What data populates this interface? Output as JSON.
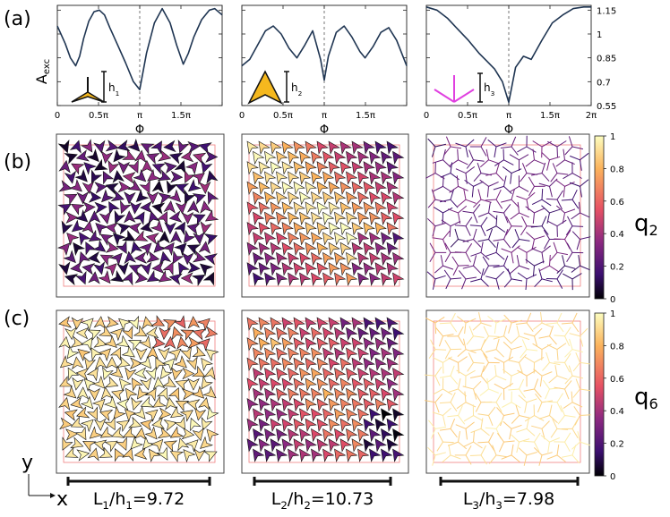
{
  "panel_labels": {
    "a": "(a)",
    "b": "(b)",
    "c": "(c)"
  },
  "order_params": {
    "b": "q2",
    "c": "q6"
  },
  "axes": {
    "y_label": "A",
    "y_label_sub": "exc",
    "x_label": "Φ",
    "y_ticks": [
      "1.15",
      "1",
      "0.85",
      "0.7",
      "0.55"
    ],
    "x_ticks": [
      "0",
      "0.5π",
      "π",
      "1.5π",
      "2π"
    ]
  },
  "colorbar": {
    "ticks": [
      "1",
      "0.8",
      "0.6",
      "0.4",
      "0.2",
      "0"
    ],
    "colors": [
      "#fcfdbf",
      "#fbb35c",
      "#e65164",
      "#8c2981",
      "#3b0f70",
      "#000004"
    ]
  },
  "shape_labels": [
    "h1",
    "h2",
    "h3"
  ],
  "ratios": [
    "L1/h1=9.72",
    "L2/h2=10.73",
    "L3/h3=7.98"
  ],
  "coord_axes": {
    "x": "x",
    "y": "y"
  },
  "chart_data": [
    {
      "type": "line",
      "xlabel": "Φ",
      "ylabel": "Aexc",
      "ylim": [
        0.55,
        1.18
      ],
      "xlim": [
        0,
        6.2832
      ],
      "x": [
        0,
        0.3,
        0.5,
        0.7,
        0.85,
        1.0,
        1.2,
        1.4,
        1.6,
        1.8,
        2.0,
        2.3,
        2.6,
        2.9,
        3.1416,
        3.4,
        3.7,
        4.0,
        4.3,
        4.55,
        4.8,
        5.0,
        5.2,
        5.5,
        5.8,
        6.0,
        6.2832
      ],
      "y": [
        1.05,
        0.94,
        0.85,
        0.8,
        0.86,
        0.97,
        1.08,
        1.14,
        1.15,
        1.12,
        1.04,
        0.93,
        0.82,
        0.7,
        0.65,
        0.88,
        1.07,
        1.16,
        1.07,
        0.93,
        0.81,
        0.88,
        0.98,
        1.09,
        1.15,
        1.16,
        1.12
      ]
    },
    {
      "type": "line",
      "xlabel": "Φ",
      "ylabel": "Aexc",
      "ylim": [
        0.55,
        1.18
      ],
      "xlim": [
        0,
        6.2832
      ],
      "x": [
        0,
        0.3,
        0.6,
        0.9,
        1.2,
        1.5,
        1.8,
        2.1,
        2.4,
        2.7,
        3.0,
        3.1416,
        3.3,
        3.6,
        3.9,
        4.2,
        4.5,
        4.7,
        5.0,
        5.3,
        5.6,
        5.9,
        6.2832
      ],
      "y": [
        0.8,
        0.84,
        0.93,
        1.02,
        1.05,
        1.0,
        0.91,
        0.85,
        0.93,
        1.02,
        0.84,
        0.71,
        0.86,
        1.01,
        1.05,
        0.98,
        0.89,
        0.85,
        0.92,
        1.01,
        1.04,
        0.96,
        0.8
      ]
    },
    {
      "type": "line",
      "xlabel": "Φ",
      "ylabel": "Aexc",
      "ylim": [
        0.55,
        1.18
      ],
      "xlim": [
        0,
        6.2832
      ],
      "x": [
        0,
        0.4,
        0.8,
        1.2,
        1.6,
        2.0,
        2.3,
        2.6,
        2.9,
        3.1416,
        3.4,
        3.7,
        4.0,
        4.4,
        4.8,
        5.2,
        5.6,
        6.0,
        6.2832
      ],
      "y": [
        1.17,
        1.15,
        1.1,
        1.03,
        0.96,
        0.88,
        0.83,
        0.78,
        0.7,
        0.57,
        0.79,
        0.86,
        0.84,
        0.96,
        1.07,
        1.12,
        1.16,
        1.17,
        1.17
      ]
    }
  ]
}
